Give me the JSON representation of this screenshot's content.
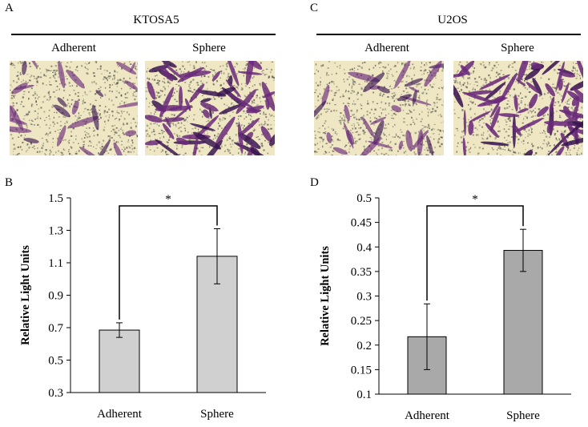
{
  "panels": {
    "A": {
      "letter": "A",
      "cell_line": "KTOSA5",
      "left_label": "Adherent",
      "right_label": "Sphere"
    },
    "B": {
      "letter": "B"
    },
    "C": {
      "letter": "C",
      "cell_line": "U2OS",
      "left_label": "Adherent",
      "right_label": "Sphere"
    },
    "D": {
      "letter": "D"
    }
  },
  "colors": {
    "micro_bg": "#efe7c4",
    "stain": "#6a2a7a",
    "stain_dark": "#3a1552",
    "bar_B": "#d0d0d0",
    "bar_D": "#a9a9a9"
  },
  "chart_data": [
    {
      "type": "bar",
      "panel": "B",
      "categories": [
        "Adherent",
        "Sphere"
      ],
      "values": [
        0.685,
        1.14
      ],
      "errors": [
        0.045,
        0.17
      ],
      "ylabel": "Relative Light Units",
      "xlabel": "",
      "ylim": [
        0.3,
        1.5
      ],
      "yticks": [
        0.3,
        0.5,
        0.7,
        0.9,
        1.1,
        1.3,
        1.5
      ],
      "ytick_labels": [
        "0.3",
        "0.5",
        "0.7",
        "0.9",
        "1.1",
        "1.3",
        "1.5"
      ],
      "significance": "*"
    },
    {
      "type": "bar",
      "panel": "D",
      "categories": [
        "Adherent",
        "Sphere"
      ],
      "values": [
        0.217,
        0.393
      ],
      "errors": [
        0.067,
        0.043
      ],
      "ylabel": "Relative Light Units",
      "xlabel": "",
      "ylim": [
        0.1,
        0.5
      ],
      "yticks": [
        0.1,
        0.15,
        0.2,
        0.25,
        0.3,
        0.35,
        0.4,
        0.45,
        0.5
      ],
      "ytick_labels": [
        "0.1",
        "0.15",
        "0.2",
        "0.25",
        "0.3",
        "0.35",
        "0.4",
        "0.45",
        "0.5"
      ],
      "significance": "*"
    }
  ]
}
